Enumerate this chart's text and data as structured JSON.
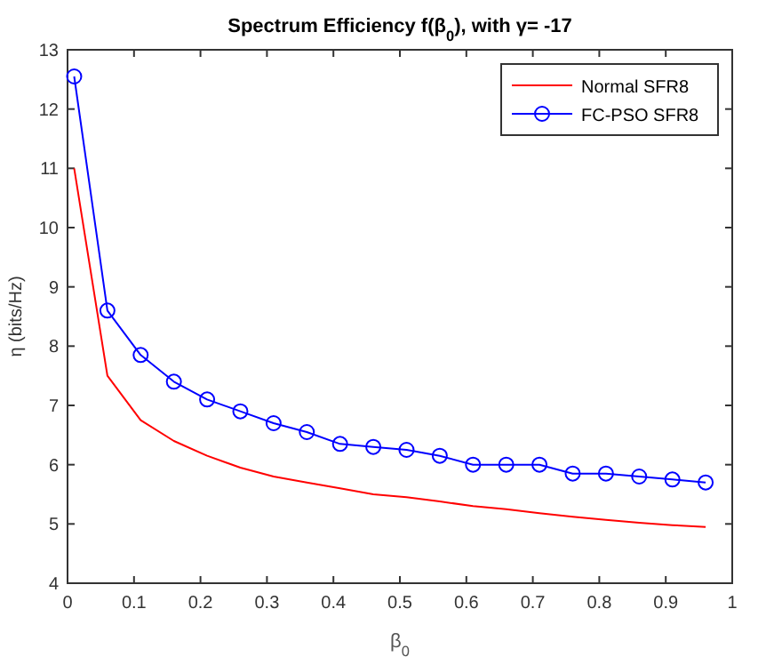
{
  "chart_data": {
    "type": "line",
    "title": "Spectrum Efficiency f(β$_{0}$), with γ= -17",
    "xlabel": "β$_{0}$",
    "ylabel": "η (bits/Hz)",
    "x": [
      0.01,
      0.06,
      0.11,
      0.16,
      0.21,
      0.26,
      0.31,
      0.36,
      0.41,
      0.46,
      0.51,
      0.56,
      0.61,
      0.66,
      0.71,
      0.76,
      0.81,
      0.86,
      0.91,
      0.96
    ],
    "series": [
      {
        "name": "Normal SFR8",
        "color": "#ff0000",
        "marker": "none",
        "values": [
          11.0,
          7.5,
          6.75,
          6.4,
          6.15,
          5.95,
          5.8,
          5.7,
          5.6,
          5.5,
          5.45,
          5.38,
          5.3,
          5.25,
          5.18,
          5.12,
          5.07,
          5.02,
          4.98,
          4.95
        ]
      },
      {
        "name": "FC-PSO SFR8",
        "color": "#0000ff",
        "marker": "circle",
        "values": [
          12.55,
          8.6,
          7.85,
          7.4,
          7.1,
          6.9,
          6.7,
          6.55,
          6.35,
          6.3,
          6.25,
          6.15,
          6.0,
          6.0,
          6.0,
          5.85,
          5.85,
          5.8,
          5.75,
          5.7
        ]
      }
    ],
    "xlim": [
      0,
      1
    ],
    "xticks": [
      0,
      0.1,
      0.2,
      0.3,
      0.4,
      0.5,
      0.6,
      0.7,
      0.8,
      0.9,
      1
    ],
    "ylim": [
      4,
      13
    ],
    "yticks": [
      4,
      5,
      6,
      7,
      8,
      9,
      10,
      11,
      12,
      13
    ],
    "grid": false,
    "legend": "top right",
    "line_style": "solid"
  }
}
